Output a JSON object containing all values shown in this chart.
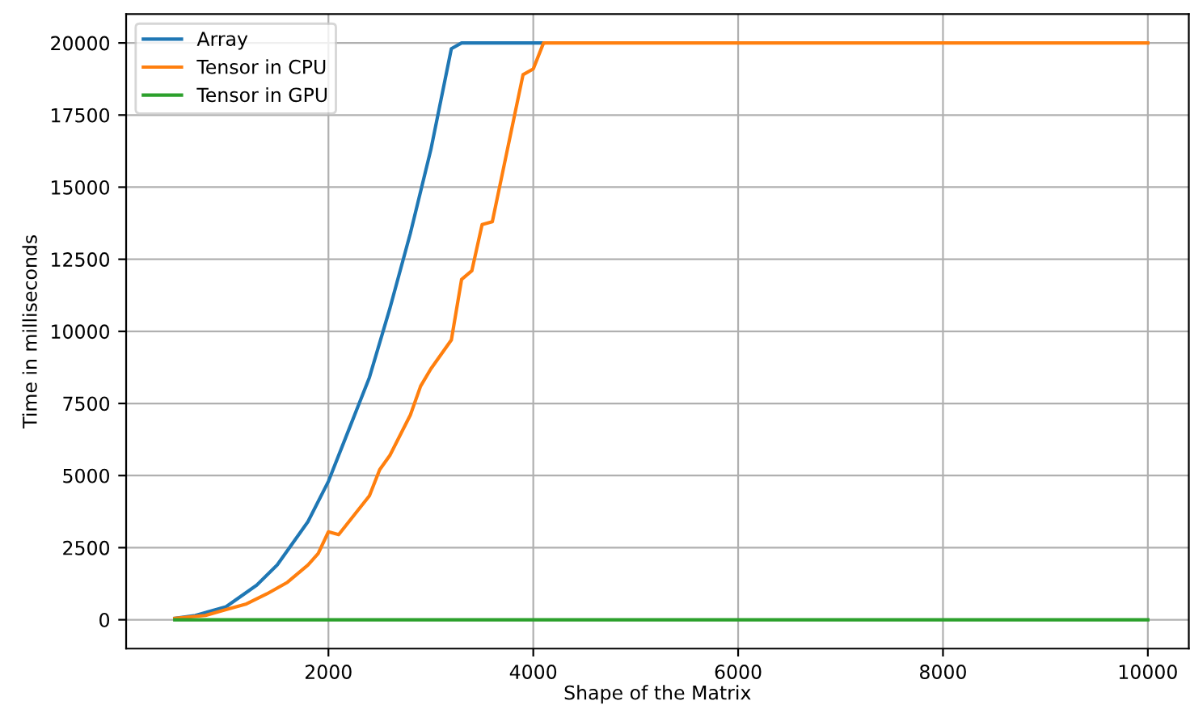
{
  "chart_data": {
    "type": "line",
    "xlabel": "Shape of the Matrix",
    "ylabel": "Time in milliseconds",
    "xlim": [
      25,
      10400
    ],
    "ylim": [
      -1000,
      21000
    ],
    "xticks": [
      2000,
      4000,
      6000,
      8000,
      10000
    ],
    "yticks": [
      0,
      2500,
      5000,
      7500,
      10000,
      12500,
      15000,
      17500,
      20000
    ],
    "grid": true,
    "legend": "top left",
    "series": [
      {
        "name": "Array",
        "color": "#1f77b4",
        "x": [
          500,
          700,
          1000,
          1300,
          1500,
          1800,
          2000,
          2200,
          2400,
          2600,
          2800,
          3000,
          3200,
          3300,
          4100
        ],
        "values": [
          50,
          150,
          450,
          1200,
          1900,
          3400,
          4800,
          6600,
          8400,
          10800,
          13400,
          16300,
          19800,
          20000,
          20000
        ]
      },
      {
        "name": "Tensor in CPU",
        "color": "#ff7f0e",
        "x": [
          500,
          800,
          1000,
          1200,
          1400,
          1600,
          1800,
          1900,
          2000,
          2100,
          2200,
          2400,
          2500,
          2600,
          2800,
          2900,
          3000,
          3200,
          3300,
          3400,
          3500,
          3600,
          3700,
          3900,
          4000,
          4100,
          10000
        ],
        "values": [
          50,
          150,
          350,
          550,
          900,
          1300,
          1900,
          2300,
          3050,
          2950,
          3400,
          4300,
          5200,
          5700,
          7100,
          8100,
          8700,
          9700,
          11800,
          12100,
          13700,
          13800,
          15500,
          18900,
          19100,
          20000,
          20000
        ]
      },
      {
        "name": "Tensor in GPU",
        "color": "#2ca02c",
        "x": [
          500,
          10000
        ],
        "values": [
          0,
          0
        ]
      }
    ]
  }
}
